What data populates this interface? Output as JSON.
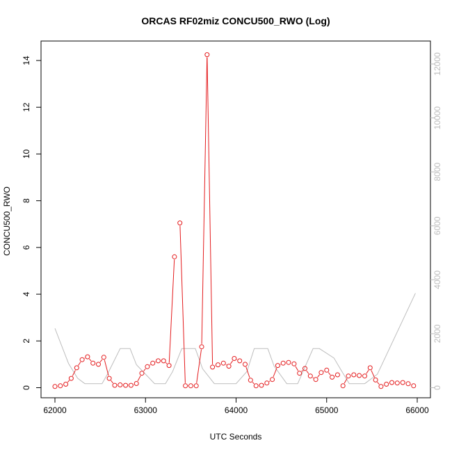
{
  "chart_data": {
    "type": "line",
    "title": "ORCAS RF02miz CONCU500_RWO (Log)",
    "xlabel": "UTC Seconds",
    "ylabel": "CONCU500_RWO",
    "xlim": [
      62000,
      66000
    ],
    "ylim": [
      0,
      14
    ],
    "y2lim": [
      0,
      12000
    ],
    "x_ticks": [
      "62000",
      "63000",
      "64000",
      "65000",
      "66000"
    ],
    "y_ticks": [
      "0",
      "2",
      "4",
      "6",
      "8",
      "10",
      "12",
      "14"
    ],
    "y2_ticks": [
      "0",
      "2000",
      "4000",
      "6000",
      "8000",
      "10000",
      "12000"
    ],
    "colors": {
      "primary": "#e41a1c",
      "secondary": "#bdbdbd",
      "axis": "#000000"
    },
    "series": [
      {
        "axis": "left",
        "color": "#e41a1c",
        "style": "line-points",
        "x": [
          62000,
          62060,
          62120,
          62180,
          62240,
          62300,
          62360,
          62420,
          62480,
          62540,
          62600,
          62660,
          62720,
          62780,
          62840,
          62900,
          62960,
          63020,
          63080,
          63140,
          63200,
          63260,
          63320,
          63380,
          63440,
          63500,
          63560,
          63620,
          63680,
          63740,
          63800,
          63860,
          63920,
          63980,
          64040,
          64100,
          64160,
          64220,
          64280,
          64340,
          64400,
          64460,
          64520,
          64580,
          64640,
          64700,
          64760,
          64820,
          64880,
          64940,
          65000,
          65060,
          65120,
          65180,
          65240,
          65300,
          65360,
          65420,
          65480,
          65540,
          65600,
          65660,
          65720,
          65780,
          65840,
          65900,
          65960
        ],
        "y": [
          0.05,
          0.08,
          0.15,
          0.4,
          0.85,
          1.2,
          1.32,
          1.05,
          1.0,
          1.3,
          0.4,
          0.1,
          0.12,
          0.1,
          0.1,
          0.18,
          0.62,
          0.9,
          1.05,
          1.15,
          1.15,
          0.95,
          5.6,
          7.05,
          0.08,
          0.08,
          0.08,
          1.75,
          14.25,
          0.88,
          0.98,
          1.05,
          0.92,
          1.25,
          1.15,
          1.0,
          0.32,
          0.08,
          0.1,
          0.2,
          0.35,
          0.95,
          1.05,
          1.08,
          1.02,
          0.62,
          0.82,
          0.5,
          0.35,
          0.65,
          0.75,
          0.45,
          0.55,
          0.08,
          0.5,
          0.55,
          0.52,
          0.5,
          0.85,
          0.33,
          0.05,
          0.15,
          0.22,
          0.2,
          0.22,
          0.17,
          0.08
        ],
        "gaps_before_index": [
          23,
          35,
          53
        ]
      },
      {
        "axis": "right",
        "color": "#bdbdbd",
        "style": "line",
        "x": [
          62000,
          62150,
          62250,
          62330,
          62520,
          62580,
          62720,
          62830,
          62900,
          63100,
          63220,
          63300,
          63400,
          63550,
          63630,
          63760,
          64000,
          64120,
          64200,
          64350,
          64420,
          64560,
          64680,
          64850,
          64920,
          65080,
          65150,
          65250,
          65420,
          65560,
          65980
        ],
        "y": [
          2200,
          900,
          350,
          150,
          150,
          500,
          1450,
          1450,
          850,
          150,
          150,
          600,
          1450,
          1450,
          700,
          150,
          150,
          600,
          1450,
          1450,
          800,
          150,
          150,
          1450,
          1450,
          1100,
          700,
          150,
          150,
          500,
          3500
        ]
      }
    ]
  }
}
